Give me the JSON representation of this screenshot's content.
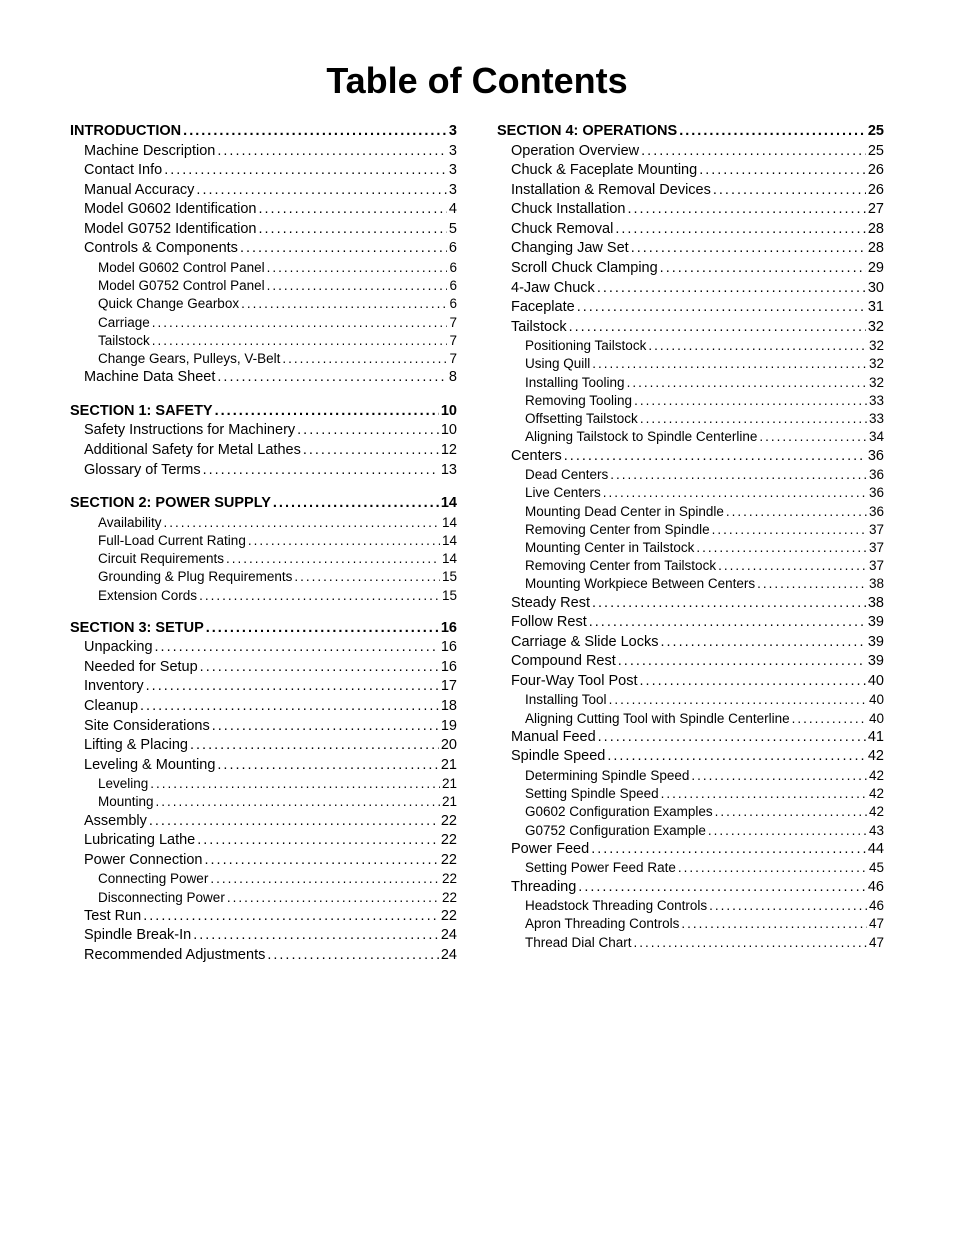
{
  "title": "Table of Contents",
  "columns": [
    [
      {
        "label": "INTRODUCTION",
        "page": "3",
        "level": 0,
        "gap": false
      },
      {
        "label": "Machine Description",
        "page": "3",
        "level": 1
      },
      {
        "label": "Contact Info",
        "page": "3",
        "level": 1
      },
      {
        "label": "Manual Accuracy",
        "page": "3",
        "level": 1
      },
      {
        "label": "Model G0602 Identification",
        "page": "4",
        "level": 1
      },
      {
        "label": "Model G0752 Identification",
        "page": "5",
        "level": 1
      },
      {
        "label": "Controls & Components",
        "page": "6",
        "level": 1
      },
      {
        "label": "Model G0602 Control Panel",
        "page": "6",
        "level": 2
      },
      {
        "label": "Model G0752 Control Panel",
        "page": "6",
        "level": 2
      },
      {
        "label": "Quick Change Gearbox",
        "page": "6",
        "level": 2
      },
      {
        "label": "Carriage",
        "page": "7",
        "level": 2
      },
      {
        "label": "Tailstock",
        "page": "7",
        "level": 2
      },
      {
        "label": "Change Gears, Pulleys, V-Belt",
        "page": "7",
        "level": 2
      },
      {
        "label": "Machine Data Sheet",
        "page": "8",
        "level": 1
      },
      {
        "label": "SECTION 1: SAFETY",
        "page": "10",
        "level": 0,
        "gap": true
      },
      {
        "label": "Safety Instructions for Machinery",
        "page": "10",
        "level": 1
      },
      {
        "label": "Additional Safety for Metal Lathes",
        "page": "12",
        "level": 1
      },
      {
        "label": "Glossary of Terms",
        "page": "13",
        "level": 1
      },
      {
        "label": "SECTION 2: POWER SUPPLY",
        "page": "14",
        "level": 0,
        "gap": true
      },
      {
        "label": "Availability",
        "page": "14",
        "level": 2
      },
      {
        "label": "Full-Load Current Rating",
        "page": "14",
        "level": 2
      },
      {
        "label": "Circuit Requirements",
        "page": "14",
        "level": 2
      },
      {
        "label": "Grounding & Plug Requirements",
        "page": "15",
        "level": 2
      },
      {
        "label": "Extension Cords",
        "page": "15",
        "level": 2
      },
      {
        "label": "SECTION 3: SETUP",
        "page": "16",
        "level": 0,
        "gap": true
      },
      {
        "label": "Unpacking",
        "page": "16",
        "level": 1
      },
      {
        "label": "Needed for Setup",
        "page": "16",
        "level": 1
      },
      {
        "label": "Inventory",
        "page": "17",
        "level": 1
      },
      {
        "label": "Cleanup",
        "page": "18",
        "level": 1
      },
      {
        "label": "Site Considerations",
        "page": "19",
        "level": 1
      },
      {
        "label": "Lifting & Placing",
        "page": "20",
        "level": 1
      },
      {
        "label": "Leveling & Mounting",
        "page": "21",
        "level": 1
      },
      {
        "label": "Leveling",
        "page": "21",
        "level": 2
      },
      {
        "label": "Mounting",
        "page": "21",
        "level": 2
      },
      {
        "label": "Assembly",
        "page": "22",
        "level": 1
      },
      {
        "label": "Lubricating Lathe",
        "page": "22",
        "level": 1
      },
      {
        "label": "Power Connection",
        "page": "22",
        "level": 1
      },
      {
        "label": "Connecting Power",
        "page": "22",
        "level": 2
      },
      {
        "label": "Disconnecting Power",
        "page": "22",
        "level": 2
      },
      {
        "label": "Test Run",
        "page": "22",
        "level": 1
      },
      {
        "label": "Spindle Break-In",
        "page": "24",
        "level": 1
      },
      {
        "label": "Recommended Adjustments",
        "page": "24",
        "level": 1
      }
    ],
    [
      {
        "label": "SECTION 4: OPERATIONS",
        "page": "25",
        "level": 0,
        "gap": false
      },
      {
        "label": "Operation Overview",
        "page": "25",
        "level": 1
      },
      {
        "label": "Chuck & Faceplate Mounting",
        "page": "26",
        "level": 1
      },
      {
        "label": "Installation & Removal Devices",
        "page": "26",
        "level": 1
      },
      {
        "label": "Chuck Installation",
        "page": "27",
        "level": 1
      },
      {
        "label": "Chuck Removal",
        "page": "28",
        "level": 1
      },
      {
        "label": "Changing Jaw Set",
        "page": "28",
        "level": 1
      },
      {
        "label": "Scroll Chuck Clamping",
        "page": "29",
        "level": 1
      },
      {
        "label": "4-Jaw Chuck",
        "page": "30",
        "level": 1
      },
      {
        "label": "Faceplate",
        "page": "31",
        "level": 1
      },
      {
        "label": "Tailstock",
        "page": "32",
        "level": 1
      },
      {
        "label": "Positioning Tailstock",
        "page": "32",
        "level": 2
      },
      {
        "label": "Using Quill",
        "page": "32",
        "level": 2
      },
      {
        "label": "Installing Tooling",
        "page": "32",
        "level": 2
      },
      {
        "label": "Removing Tooling",
        "page": "33",
        "level": 2
      },
      {
        "label": "Offsetting Tailstock",
        "page": "33",
        "level": 2
      },
      {
        "label": "Aligning Tailstock to Spindle Centerline",
        "page": "34",
        "level": 2
      },
      {
        "label": "Centers",
        "page": "36",
        "level": 1
      },
      {
        "label": "Dead Centers",
        "page": "36",
        "level": 2
      },
      {
        "label": "Live Centers",
        "page": "36",
        "level": 2
      },
      {
        "label": "Mounting Dead Center in Spindle",
        "page": "36",
        "level": 2
      },
      {
        "label": "Removing Center from Spindle",
        "page": "37",
        "level": 2
      },
      {
        "label": "Mounting Center in Tailstock",
        "page": "37",
        "level": 2
      },
      {
        "label": "Removing Center from Tailstock",
        "page": "37",
        "level": 2
      },
      {
        "label": "Mounting Workpiece Between Centers",
        "page": "38",
        "level": 2
      },
      {
        "label": "Steady Rest",
        "page": "38",
        "level": 1
      },
      {
        "label": "Follow Rest",
        "page": "39",
        "level": 1
      },
      {
        "label": "Carriage & Slide Locks",
        "page": "39",
        "level": 1
      },
      {
        "label": "Compound Rest",
        "page": "39",
        "level": 1
      },
      {
        "label": "Four-Way Tool Post",
        "page": "40",
        "level": 1
      },
      {
        "label": "Installing Tool",
        "page": "40",
        "level": 2
      },
      {
        "label": "Aligning Cutting Tool with Spindle Centerline",
        "page": "40",
        "level": 2
      },
      {
        "label": "Manual Feed",
        "page": "41",
        "level": 1
      },
      {
        "label": "Spindle Speed",
        "page": "42",
        "level": 1
      },
      {
        "label": "Determining Spindle Speed",
        "page": "42",
        "level": 2
      },
      {
        "label": "Setting Spindle Speed",
        "page": "42",
        "level": 2
      },
      {
        "label": "G0602 Configuration Examples",
        "page": "42",
        "level": 2
      },
      {
        "label": "G0752 Configuration Example",
        "page": "43",
        "level": 2
      },
      {
        "label": "Power Feed",
        "page": "44",
        "level": 1
      },
      {
        "label": "Setting Power Feed Rate",
        "page": "45",
        "level": 2
      },
      {
        "label": "Threading",
        "page": "46",
        "level": 1
      },
      {
        "label": "Headstock Threading Controls",
        "page": "46",
        "level": 2
      },
      {
        "label": "Apron Threading Controls",
        "page": "47",
        "level": 2
      },
      {
        "label": "Thread Dial Chart",
        "page": "47",
        "level": 2
      }
    ]
  ]
}
